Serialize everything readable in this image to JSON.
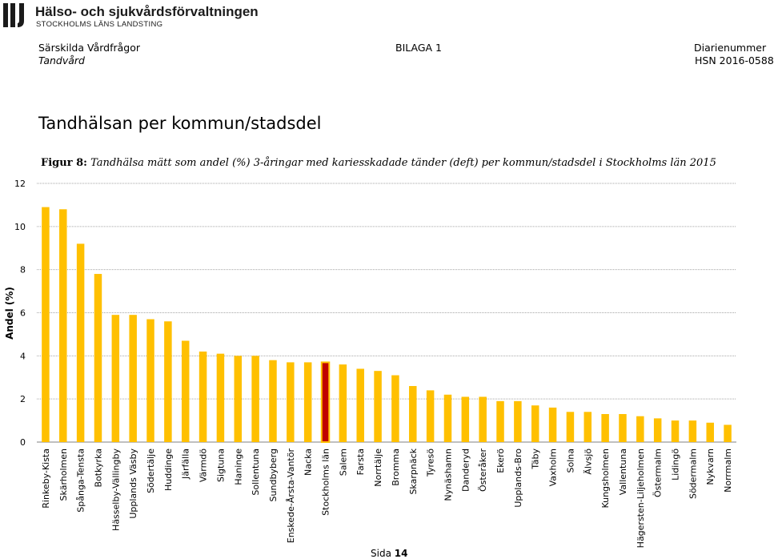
{
  "header": {
    "org_name": "Hälso- och sjukvårdsförvaltningen",
    "org_sub": "STOCKHOLMS LÄNS LANDSTING",
    "left_top": "Särskilda Vårdfrågor",
    "left_bottom": "Tandvård",
    "center": "BILAGA 1",
    "right_top": "Diarienummer",
    "right_bottom": "HSN 2016-0588"
  },
  "section_title": "Tandhälsan per kommun/stadsdel",
  "figure": {
    "label": "Figur 8:",
    "caption": "Tandhälsa mätt som andel (%) 3-åringar med kariesskadade tänder (deft) per kommun/stadsdel i Stockholms län 2015"
  },
  "footer": {
    "page_label": "Sida",
    "page_number": "14"
  },
  "colors": {
    "bar": "#ffc000",
    "highlight_bar": "#c00000",
    "highlight_border": "#ffc000",
    "grid": "#a6a6a6"
  },
  "chart_data": {
    "type": "bar",
    "title": "",
    "xlabel": "",
    "ylabel": "Andel (%)",
    "ylim": [
      0,
      12
    ],
    "yticks": [
      "0",
      "2",
      "4",
      "6",
      "8",
      "10",
      "12"
    ],
    "grid": true,
    "legend": "none",
    "highlight": "Stockholms län",
    "categories": [
      "Rinkeby-Kista",
      "Skärholmen",
      "Spånga-Tensta",
      "Botkyrka",
      "Hässelby-Vällingby",
      "Upplands Väsby",
      "Södertälje",
      "Huddinge",
      "Järfälla",
      "Värmdö",
      "Sigtuna",
      "Haninge",
      "Sollentuna",
      "Sundbyberg",
      "Enskede-Årsta-Vantör",
      "Nacka",
      "Stockholms län",
      "Salem",
      "Farsta",
      "Norrtälje",
      "Bromma",
      "Skarpnäck",
      "Tyresö",
      "Nynäshamn",
      "Danderyd",
      "Österåker",
      "Ekerö",
      "Upplands-Bro",
      "Täby",
      "Vaxholm",
      "Solna",
      "Älvsjö",
      "Kungsholmen",
      "Vallentuna",
      "Hägersten-Liljeholmen",
      "Östermalm",
      "Lidingö",
      "Södermalm",
      "Nykvarn",
      "Norrmalm"
    ],
    "values": [
      10.9,
      10.8,
      9.2,
      7.8,
      5.9,
      5.9,
      5.7,
      5.6,
      4.7,
      4.2,
      4.1,
      4.0,
      4.0,
      3.8,
      3.7,
      3.7,
      3.7,
      3.6,
      3.4,
      3.3,
      3.1,
      2.6,
      2.4,
      2.2,
      2.1,
      2.1,
      1.9,
      1.9,
      1.7,
      1.6,
      1.4,
      1.4,
      1.3,
      1.3,
      1.2,
      1.1,
      1.0,
      1.0,
      0.9,
      0.8
    ]
  }
}
